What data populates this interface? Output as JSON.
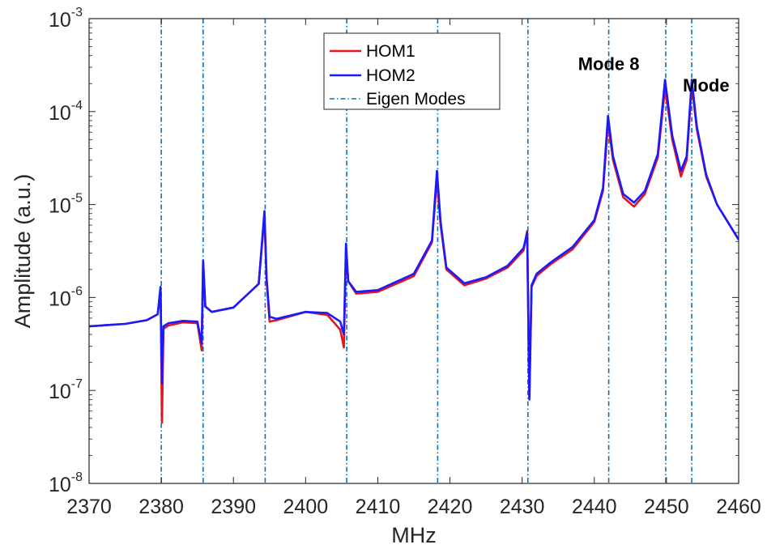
{
  "chart_data": {
    "type": "line",
    "title": "",
    "xlabel": "MHz",
    "ylabel": "Amplitude (a.u.)",
    "xlim": [
      2370,
      2460
    ],
    "ylim": [
      1e-08,
      0.001
    ],
    "yscale": "log",
    "x_ticks": [
      "2370",
      "2380",
      "2390",
      "2400",
      "2410",
      "2420",
      "2430",
      "2440",
      "2450",
      "2460"
    ],
    "y_ticks": [
      {
        "base": "10",
        "exp": "-8",
        "value": 1e-08
      },
      {
        "base": "10",
        "exp": "-7",
        "value": 1e-07
      },
      {
        "base": "10",
        "exp": "-6",
        "value": 1e-06
      },
      {
        "base": "10",
        "exp": "-5",
        "value": 1e-05
      },
      {
        "base": "10",
        "exp": "-4",
        "value": 0.0001
      },
      {
        "base": "10",
        "exp": "-3",
        "value": 0.001
      }
    ],
    "grid": false,
    "legend": "top-center",
    "series": [
      {
        "name": "HOM1",
        "color": "#e8141b",
        "style": "solid",
        "x": [
          2370,
          2375,
          2378,
          2379.5,
          2379.9,
          2380.1,
          2380.3,
          2381,
          2383,
          2385,
          2385.6,
          2385.8,
          2386.1,
          2387,
          2390,
          2393.5,
          2394.3,
          2394.6,
          2395,
          2396,
          2400,
          2403,
          2404.8,
          2405.3,
          2405.6,
          2405.9,
          2407,
          2410,
          2415,
          2417.5,
          2418.2,
          2418.7,
          2419.5,
          2422,
          2425,
          2428,
          2430.2,
          2430.7,
          2431.0,
          2431.3,
          2432,
          2434,
          2437,
          2440,
          2441.2,
          2441.9,
          2442.6,
          2444,
          2445.5,
          2447,
          2448.8,
          2449.8,
          2450.8,
          2452.0,
          2452.8,
          2453.5,
          2454.2,
          2455.5,
          2457,
          2460
        ],
        "y": [
          4.9e-07,
          5.2e-07,
          5.7e-07,
          6.6e-07,
          1.25e-06,
          4.5e-08,
          4.6e-07,
          5e-07,
          5.4e-07,
          5.3e-07,
          2.7e-07,
          2.4e-06,
          8e-07,
          7e-07,
          7.8e-07,
          1.4e-06,
          7.5e-06,
          1.5e-06,
          5.5e-07,
          5.7e-07,
          7e-07,
          6.5e-07,
          4.5e-07,
          2.9e-07,
          3.5e-06,
          1.5e-06,
          1.1e-06,
          1.15e-06,
          1.7e-06,
          3.9e-06,
          1.9e-05,
          6e-06,
          2e-06,
          1.35e-06,
          1.6e-06,
          2.1e-06,
          3.2e-06,
          5.2e-06,
          8.5e-08,
          1.3e-06,
          1.7e-06,
          2.3e-06,
          3.3e-06,
          6.5e-06,
          1.4e-05,
          7.5e-05,
          3e-05,
          1.2e-05,
          9.5e-06,
          1.3e-05,
          3.2e-05,
          0.00018,
          5e-05,
          2e-05,
          3e-05,
          0.00019,
          6.5e-05,
          2e-05,
          1e-05,
          4.2e-06
        ]
      },
      {
        "name": "HOM2",
        "color": "#1a1aff",
        "style": "solid",
        "x": [
          2370,
          2375,
          2378,
          2379.5,
          2379.9,
          2380.1,
          2380.3,
          2381,
          2383,
          2385,
          2385.6,
          2385.8,
          2386.1,
          2387,
          2390,
          2393.5,
          2394.3,
          2394.6,
          2395,
          2396,
          2400,
          2403,
          2404.8,
          2405.3,
          2405.6,
          2405.9,
          2407,
          2410,
          2415,
          2417.5,
          2418.2,
          2418.7,
          2419.5,
          2422,
          2425,
          2428,
          2430.2,
          2430.7,
          2431.0,
          2431.3,
          2432,
          2434,
          2437,
          2440,
          2441.2,
          2441.9,
          2442.6,
          2444,
          2445.5,
          2447,
          2448.8,
          2449.8,
          2450.8,
          2452.0,
          2452.8,
          2453.5,
          2454.2,
          2455.5,
          2457,
          2460
        ],
        "y": [
          4.9e-07,
          5.2e-07,
          5.7e-07,
          6.6e-07,
          1.3e-06,
          1.2e-07,
          4.9e-07,
          5.3e-07,
          5.6e-07,
          5.5e-07,
          3.2e-07,
          2.5e-06,
          8e-07,
          7e-07,
          7.8e-07,
          1.4e-06,
          8.5e-06,
          1.6e-06,
          6.2e-07,
          5.9e-07,
          7e-07,
          6.8e-07,
          5.5e-07,
          4e-07,
          3.8e-06,
          1.5e-06,
          1.15e-06,
          1.2e-06,
          1.8e-06,
          4.1e-06,
          2.3e-05,
          6.5e-06,
          2.1e-06,
          1.42e-06,
          1.65e-06,
          2.2e-06,
          3.4e-06,
          5e-06,
          8e-08,
          1.35e-06,
          1.8e-06,
          2.4e-06,
          3.5e-06,
          6.8e-06,
          1.5e-05,
          9e-05,
          3.3e-05,
          1.3e-05,
          1.05e-05,
          1.4e-05,
          3.5e-05,
          0.00022,
          5.5e-05,
          2.3e-05,
          3.3e-05,
          0.00022,
          7e-05,
          2.1e-05,
          1e-05,
          4.2e-06
        ]
      },
      {
        "name": "Eigen Modes",
        "color": "#0b72bd",
        "style": "dash-dot",
        "x_lines": [
          2380.0,
          2385.8,
          2394.4,
          2405.7,
          2418.3,
          2430.8,
          2442.0,
          2449.9,
          2453.5
        ]
      }
    ],
    "annotations": [
      {
        "text": "Mode 8",
        "x": 2442.0,
        "y": 0.00028
      },
      {
        "text": "Mode",
        "x": 2455.5,
        "y": 0.000165
      }
    ]
  }
}
